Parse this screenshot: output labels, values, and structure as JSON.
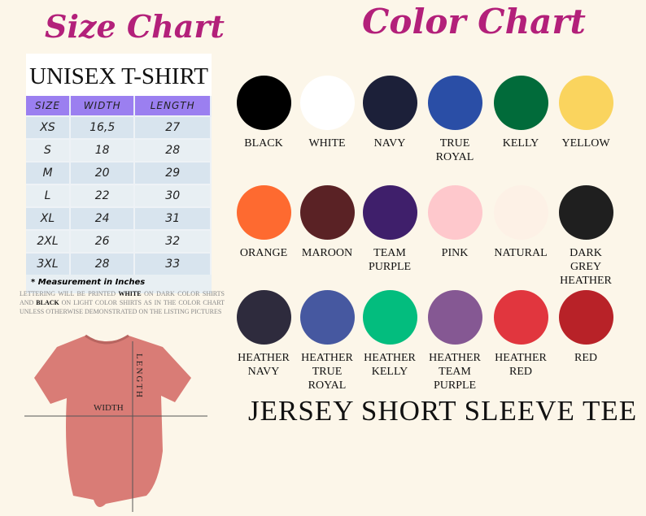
{
  "size_chart": {
    "title": "Size Chart",
    "table_title": "UNISEX T-SHIRT",
    "headers": [
      "SIZE",
      "WIDTH",
      "LENGTH"
    ],
    "rows": [
      [
        "XS",
        "16,5",
        "27"
      ],
      [
        "S",
        "18",
        "28"
      ],
      [
        "M",
        "20",
        "29"
      ],
      [
        "L",
        "22",
        "30"
      ],
      [
        "XL",
        "24",
        "31"
      ],
      [
        "2XL",
        "26",
        "32"
      ],
      [
        "3XL",
        "28",
        "33"
      ]
    ],
    "note": "* Measurement in Inches"
  },
  "lettering": {
    "p1": "Lettering will be printed ",
    "white": "WHITE",
    "p2": " on dark color shirts and ",
    "black": "BLACK",
    "p3": " on light color shirts as in the color chart unless otherwise demonstrated on the listing pictures"
  },
  "diagram": {
    "width_label": "WIDTH",
    "length_label": "LENGTH",
    "shirt_color": "#d97c76"
  },
  "color_chart": {
    "title": "Color Chart",
    "colors": [
      {
        "name": "BLACK",
        "hex": "#000000"
      },
      {
        "name": "WHITE",
        "hex": "#ffffff"
      },
      {
        "name": "NAVY",
        "hex": "#1c2039"
      },
      {
        "name": "TRUE ROYAL",
        "hex": "#2a4ea6"
      },
      {
        "name": "KELLY",
        "hex": "#016b3a"
      },
      {
        "name": "YELLOW",
        "hex": "#fad45e"
      },
      {
        "name": "ORANGE",
        "hex": "#fe6a30"
      },
      {
        "name": "MAROON",
        "hex": "#5a2225"
      },
      {
        "name": "TEAM PURPLE",
        "hex": "#3f1f6b"
      },
      {
        "name": "PINK",
        "hex": "#fec8cc"
      },
      {
        "name": "NATURAL",
        "hex": "#fdf1e6"
      },
      {
        "name": "DARK GREY HEATHER",
        "hex": "#1f1f1f"
      },
      {
        "name": "HEATHER NAVY",
        "hex": "#2e2b3d"
      },
      {
        "name": "HEATHER TRUE ROYAL",
        "hex": "#4658a0"
      },
      {
        "name": "HEATHER KELLY",
        "hex": "#03bd7e"
      },
      {
        "name": "HEATHER TEAM PURPLE",
        "hex": "#855893"
      },
      {
        "name": "HEATHER RED",
        "hex": "#e1363e"
      },
      {
        "name": "RED",
        "hex": "#b82228"
      }
    ]
  },
  "product": "JERSEY SHORT SLEEVE TEE"
}
